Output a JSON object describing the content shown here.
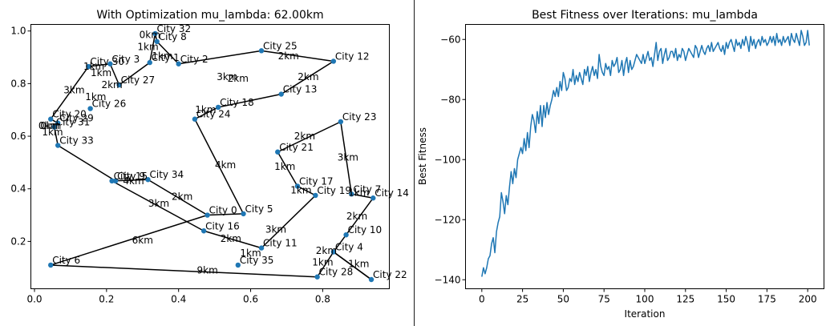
{
  "chart_data": [
    {
      "type": "scatter",
      "title": "With Optimization mu_lambda: 62.00km",
      "xlabel": "",
      "ylabel": "",
      "xlim": [
        -0.01,
        0.985
      ],
      "ylim": [
        0.02,
        1.025
      ],
      "xticks": [
        0.0,
        0.2,
        0.4,
        0.6,
        0.8
      ],
      "xtick_labels": [
        "0.0",
        "0.2",
        "0.4",
        "0.6",
        "0.8"
      ],
      "yticks": [
        0.2,
        0.4,
        0.6,
        0.8,
        1.0
      ],
      "ytick_labels": [
        "0.2",
        "0.4",
        "0.6",
        "0.8",
        "1.0"
      ],
      "grid": false,
      "point_color": "#1f77b4",
      "route_color": "#000000",
      "cities": [
        {
          "label": "City 0",
          "x": 0.48,
          "y": 0.3
        },
        {
          "label": "City 2",
          "x": 0.4,
          "y": 0.875
        },
        {
          "label": "City 3",
          "x": 0.21,
          "y": 0.875
        },
        {
          "label": "City 4",
          "x": 0.83,
          "y": 0.16
        },
        {
          "label": "City 5",
          "x": 0.58,
          "y": 0.305
        },
        {
          "label": "City 6",
          "x": 0.045,
          "y": 0.11
        },
        {
          "label": "City 7",
          "x": 0.88,
          "y": 0.38
        },
        {
          "label": "City 8",
          "x": 0.34,
          "y": 0.96
        },
        {
          "label": "City 9",
          "x": 0.225,
          "y": 0.43
        },
        {
          "label": "City 10",
          "x": 0.865,
          "y": 0.225
        },
        {
          "label": "City 11",
          "x": 0.63,
          "y": 0.175
        },
        {
          "label": "City 12",
          "x": 0.83,
          "y": 0.885
        },
        {
          "label": "City 13",
          "x": 0.685,
          "y": 0.76
        },
        {
          "label": "City 14",
          "x": 0.94,
          "y": 0.365
        },
        {
          "label": "City 15",
          "x": 0.215,
          "y": 0.43
        },
        {
          "label": "City 16",
          "x": 0.47,
          "y": 0.24
        },
        {
          "label": "City 17",
          "x": 0.73,
          "y": 0.41
        },
        {
          "label": "City 18",
          "x": 0.51,
          "y": 0.71
        },
        {
          "label": "City 19",
          "x": 0.78,
          "y": 0.375
        },
        {
          "label": "City 20",
          "x": 0.045,
          "y": 0.665
        },
        {
          "label": "City 21",
          "x": 0.675,
          "y": 0.54
        },
        {
          "label": "City 22",
          "x": 0.935,
          "y": 0.055
        },
        {
          "label": "City 23",
          "x": 0.85,
          "y": 0.655
        },
        {
          "label": "City 24",
          "x": 0.445,
          "y": 0.665
        },
        {
          "label": "City 25",
          "x": 0.63,
          "y": 0.925
        },
        {
          "label": "City 26",
          "x": 0.155,
          "y": 0.705
        },
        {
          "label": "City 27",
          "x": 0.235,
          "y": 0.795
        },
        {
          "label": "City 28",
          "x": 0.785,
          "y": 0.065
        },
        {
          "label": "City 29",
          "x": 0.065,
          "y": 0.65
        },
        {
          "label": "City 30",
          "x": 0.15,
          "y": 0.865
        },
        {
          "label": "City 31",
          "x": 0.055,
          "y": 0.635
        },
        {
          "label": "City 32",
          "x": 0.335,
          "y": 0.99
        },
        {
          "label": "City 33",
          "x": 0.065,
          "y": 0.565
        },
        {
          "label": "City 34",
          "x": 0.315,
          "y": 0.435
        },
        {
          "label": "City 35",
          "x": 0.565,
          "y": 0.11
        },
        {
          "label": "City 1",
          "x": 0.32,
          "y": 0.88
        }
      ],
      "route": [
        {
          "x": 0.48,
          "y": 0.3
        },
        {
          "x": 0.315,
          "y": 0.435
        },
        {
          "x": 0.215,
          "y": 0.43
        },
        {
          "x": 0.47,
          "y": 0.24
        },
        {
          "x": 0.63,
          "y": 0.175
        },
        {
          "x": 0.78,
          "y": 0.375
        },
        {
          "x": 0.73,
          "y": 0.41
        },
        {
          "x": 0.675,
          "y": 0.54
        },
        {
          "x": 0.85,
          "y": 0.655
        },
        {
          "x": 0.88,
          "y": 0.38
        },
        {
          "x": 0.94,
          "y": 0.365
        },
        {
          "x": 0.865,
          "y": 0.225
        },
        {
          "x": 0.83,
          "y": 0.16
        },
        {
          "x": 0.935,
          "y": 0.055
        },
        {
          "x": 0.83,
          "y": 0.16
        },
        {
          "x": 0.785,
          "y": 0.065
        },
        {
          "x": 0.045,
          "y": 0.11
        },
        {
          "x": 0.48,
          "y": 0.3
        },
        {
          "x": 0.58,
          "y": 0.305
        },
        {
          "x": 0.445,
          "y": 0.665
        },
        {
          "x": 0.51,
          "y": 0.71
        },
        {
          "x": 0.685,
          "y": 0.76
        },
        {
          "x": 0.83,
          "y": 0.885
        },
        {
          "x": 0.63,
          "y": 0.925
        },
        {
          "x": 0.4,
          "y": 0.875
        },
        {
          "x": 0.34,
          "y": 0.96
        },
        {
          "x": 0.335,
          "y": 0.99
        },
        {
          "x": 0.32,
          "y": 0.88
        },
        {
          "x": 0.235,
          "y": 0.795
        },
        {
          "x": 0.21,
          "y": 0.875
        },
        {
          "x": 0.15,
          "y": 0.865
        },
        {
          "x": 0.045,
          "y": 0.665
        },
        {
          "x": 0.065,
          "y": 0.65
        },
        {
          "x": 0.055,
          "y": 0.635
        },
        {
          "x": 0.065,
          "y": 0.565
        },
        {
          "x": 0.225,
          "y": 0.43
        }
      ],
      "edge_labels": [
        {
          "text": "1km",
          "x": 0.165,
          "y": 0.865
        },
        {
          "text": "1km",
          "x": 0.185,
          "y": 0.84
        },
        {
          "text": "2km",
          "x": 0.215,
          "y": 0.795
        },
        {
          "text": "1km",
          "x": 0.17,
          "y": 0.75
        },
        {
          "text": "3km",
          "x": 0.11,
          "y": 0.775
        },
        {
          "text": "0km",
          "x": 0.32,
          "y": 0.985
        },
        {
          "text": "1km",
          "x": 0.315,
          "y": 0.94
        },
        {
          "text": "1km",
          "x": 0.355,
          "y": 0.905
        },
        {
          "text": "3km",
          "x": 0.535,
          "y": 0.825
        },
        {
          "text": "2km",
          "x": 0.565,
          "y": 0.82
        },
        {
          "text": "2km",
          "x": 0.705,
          "y": 0.905
        },
        {
          "text": "2km",
          "x": 0.76,
          "y": 0.825
        },
        {
          "text": "1km",
          "x": 0.475,
          "y": 0.7
        },
        {
          "text": "0km",
          "x": 0.045,
          "y": 0.64
        },
        {
          "text": "1km",
          "x": 0.05,
          "y": 0.615
        },
        {
          "text": "4km",
          "x": 0.53,
          "y": 0.49
        },
        {
          "text": "2km",
          "x": 0.75,
          "y": 0.6
        },
        {
          "text": "3km",
          "x": 0.87,
          "y": 0.52
        },
        {
          "text": "1km",
          "x": 0.695,
          "y": 0.485
        },
        {
          "text": "1km",
          "x": 0.74,
          "y": 0.395
        },
        {
          "text": "1km",
          "x": 0.9,
          "y": 0.385
        },
        {
          "text": "2km",
          "x": 0.895,
          "y": 0.295
        },
        {
          "text": "3km",
          "x": 0.67,
          "y": 0.245
        },
        {
          "text": "2km",
          "x": 0.81,
          "y": 0.165
        },
        {
          "text": "1km",
          "x": 0.8,
          "y": 0.12
        },
        {
          "text": "1km",
          "x": 0.9,
          "y": 0.115
        },
        {
          "text": "1km",
          "x": 0.6,
          "y": 0.155
        },
        {
          "text": "9km",
          "x": 0.48,
          "y": 0.09
        },
        {
          "text": "2km",
          "x": 0.545,
          "y": 0.21
        },
        {
          "text": "6km",
          "x": 0.3,
          "y": 0.205
        },
        {
          "text": "3km",
          "x": 0.345,
          "y": 0.345
        },
        {
          "text": "2km",
          "x": 0.41,
          "y": 0.37
        },
        {
          "text": "4km",
          "x": 0.275,
          "y": 0.43
        },
        {
          "text": "0km",
          "x": 0.04,
          "y": 0.64
        }
      ]
    },
    {
      "type": "line",
      "title": "Best Fitness over Iterations: mu_lambda",
      "xlabel": "Iteration",
      "ylabel": "Best Fitness",
      "xlim": [
        -10,
        210
      ],
      "ylim": [
        -143,
        -55
      ],
      "xticks": [
        0,
        25,
        50,
        75,
        100,
        125,
        150,
        175,
        200
      ],
      "xtick_labels": [
        "0",
        "25",
        "50",
        "75",
        "100",
        "125",
        "150",
        "175",
        "200"
      ],
      "yticks": [
        -140,
        -120,
        -100,
        -80,
        -60
      ],
      "ytick_labels": [
        "−140",
        "−120",
        "−100",
        "−80",
        "−60"
      ],
      "grid": false,
      "series": [
        {
          "color": "#1f77b4",
          "values": [
            -139,
            -136,
            -138,
            -136,
            -133,
            -132,
            -128,
            -126,
            -131,
            -124,
            -121,
            -119,
            -111,
            -114,
            -118,
            -112,
            -115,
            -109,
            -104,
            -108,
            -103,
            -106,
            -100,
            -98,
            -96,
            -98,
            -93,
            -97,
            -91,
            -96,
            -89,
            -85,
            -87,
            -91,
            -84,
            -88,
            -82,
            -89,
            -82,
            -86,
            -81,
            -85,
            -82,
            -80,
            -77,
            -79,
            -76,
            -79,
            -74,
            -77,
            -71,
            -73,
            -77,
            -76,
            -73,
            -74,
            -70,
            -75,
            -72,
            -74,
            -71,
            -73,
            -75,
            -70,
            -72,
            -69,
            -74,
            -71,
            -69,
            -72,
            -70,
            -73,
            -65,
            -69,
            -71,
            -72,
            -68,
            -70,
            -69,
            -72,
            -67,
            -69,
            -68,
            -66,
            -71,
            -70,
            -67,
            -72,
            -68,
            -66,
            -71,
            -67,
            -70,
            -69,
            -67,
            -65,
            -66,
            -67,
            -68,
            -65,
            -68,
            -66,
            -64,
            -67,
            -66,
            -69,
            -65,
            -61,
            -67,
            -64,
            -63,
            -68,
            -65,
            -63,
            -67,
            -66,
            -64,
            -64,
            -66,
            -63,
            -67,
            -65,
            -66,
            -63,
            -64,
            -67,
            -65,
            -63,
            -64,
            -65,
            -66,
            -62,
            -63,
            -66,
            -64,
            -62,
            -64,
            -65,
            -63,
            -62,
            -64,
            -61,
            -64,
            -63,
            -62,
            -61,
            -63,
            -64,
            -62,
            -65,
            -61,
            -63,
            -61,
            -60,
            -62,
            -64,
            -60,
            -62,
            -61,
            -63,
            -60,
            -62,
            -59,
            -61,
            -64,
            -59,
            -62,
            -60,
            -63,
            -61,
            -60,
            -62,
            -59,
            -61,
            -60,
            -62,
            -61,
            -59,
            -61,
            -59,
            -62,
            -58,
            -61,
            -60,
            -62,
            -59,
            -61,
            -60,
            -59,
            -62,
            -58,
            -60,
            -61,
            -58,
            -60,
            -62,
            -57,
            -59,
            -62,
            -61,
            -57,
            -62
          ]
        }
      ]
    }
  ]
}
